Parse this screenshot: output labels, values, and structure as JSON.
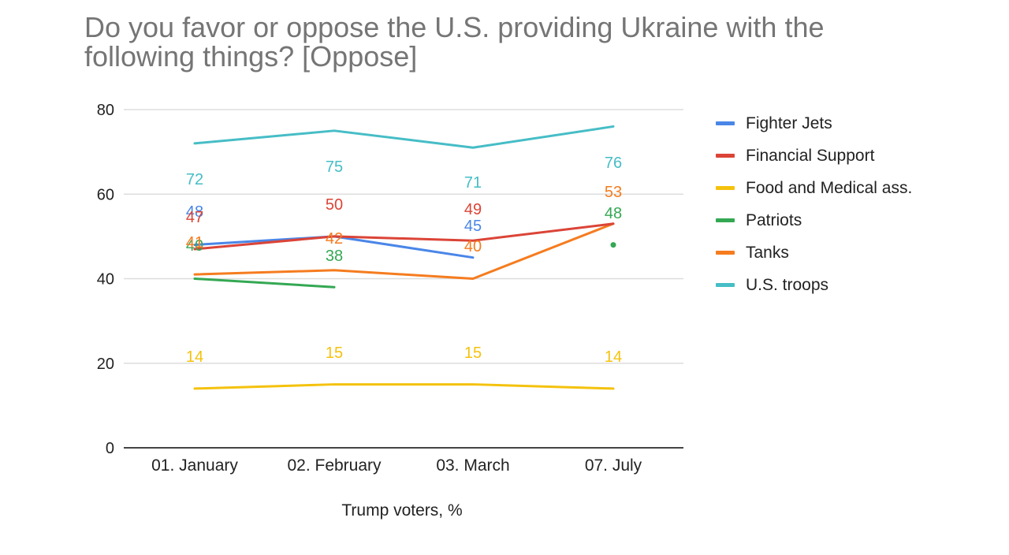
{
  "chart_data": {
    "type": "line",
    "title": "Do you favor or oppose the U.S. providing Ukraine with the following things?  [Oppose]",
    "xlabel": "Trump voters, %",
    "ylabel": "",
    "categories": [
      "01. January",
      "02. February",
      "03. March",
      "07. July"
    ],
    "ylim": [
      0,
      80
    ],
    "yticks": [
      "0",
      "20",
      "40",
      "60",
      "80"
    ],
    "grid": true,
    "legend_position": "right",
    "series": [
      {
        "name": "Fighter Jets",
        "color": "#4a86e8",
        "values": [
          48,
          50,
          45,
          null
        ],
        "labels": [
          "48",
          "",
          "45",
          ""
        ]
      },
      {
        "name": "Financial Support",
        "color": "#db4437",
        "values": [
          47,
          50,
          49,
          53
        ],
        "labels": [
          "47",
          "50",
          "49",
          ""
        ]
      },
      {
        "name": "Food and Medical ass.",
        "color": "#f4c20d",
        "values": [
          14,
          15,
          15,
          14
        ],
        "labels": [
          "14",
          "15",
          "15",
          "14"
        ]
      },
      {
        "name": "Patriots",
        "color": "#34a853",
        "values": [
          40,
          38,
          null,
          48
        ],
        "labels": [
          "40",
          "38",
          "",
          "48"
        ]
      },
      {
        "name": "Tanks",
        "color": "#f57c1f",
        "values": [
          41,
          42,
          40,
          53
        ],
        "labels": [
          "41",
          "42",
          "40",
          "53"
        ]
      },
      {
        "name": "U.S. troops",
        "color": "#46bdc6",
        "values": [
          72,
          75,
          71,
          76
        ],
        "labels": [
          "72",
          "75",
          "71",
          "76"
        ]
      }
    ]
  }
}
